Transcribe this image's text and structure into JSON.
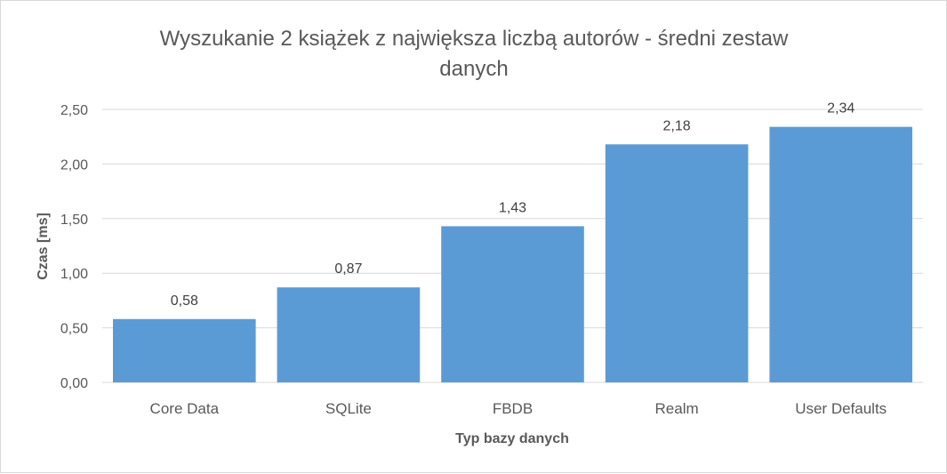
{
  "chart_data": {
    "type": "bar",
    "title": "Wyszukanie 2 książek z największa liczbą autorów - średni zestaw danych",
    "title_lines": [
      "Wyszukanie 2 książek z największa liczbą autorów - średni zestaw",
      "danych"
    ],
    "xlabel": "Typ bazy danych",
    "ylabel": "Czas [ms]",
    "categories": [
      "Core Data",
      "SQLite",
      "FBDB",
      "Realm",
      "User Defaults"
    ],
    "values": [
      0.58,
      0.87,
      1.43,
      2.18,
      2.34
    ],
    "value_labels": [
      "0,58",
      "0,87",
      "1,43",
      "2,18",
      "2,34"
    ],
    "ylim": [
      0,
      2.5
    ],
    "yticks": [
      0,
      0.5,
      1.0,
      1.5,
      2.0,
      2.5
    ],
    "ytick_labels": [
      "0,00",
      "0,50",
      "1,00",
      "1,50",
      "2,00",
      "2,50"
    ],
    "grid": true,
    "legend": "none",
    "bar_color": "#5b9bd5"
  }
}
